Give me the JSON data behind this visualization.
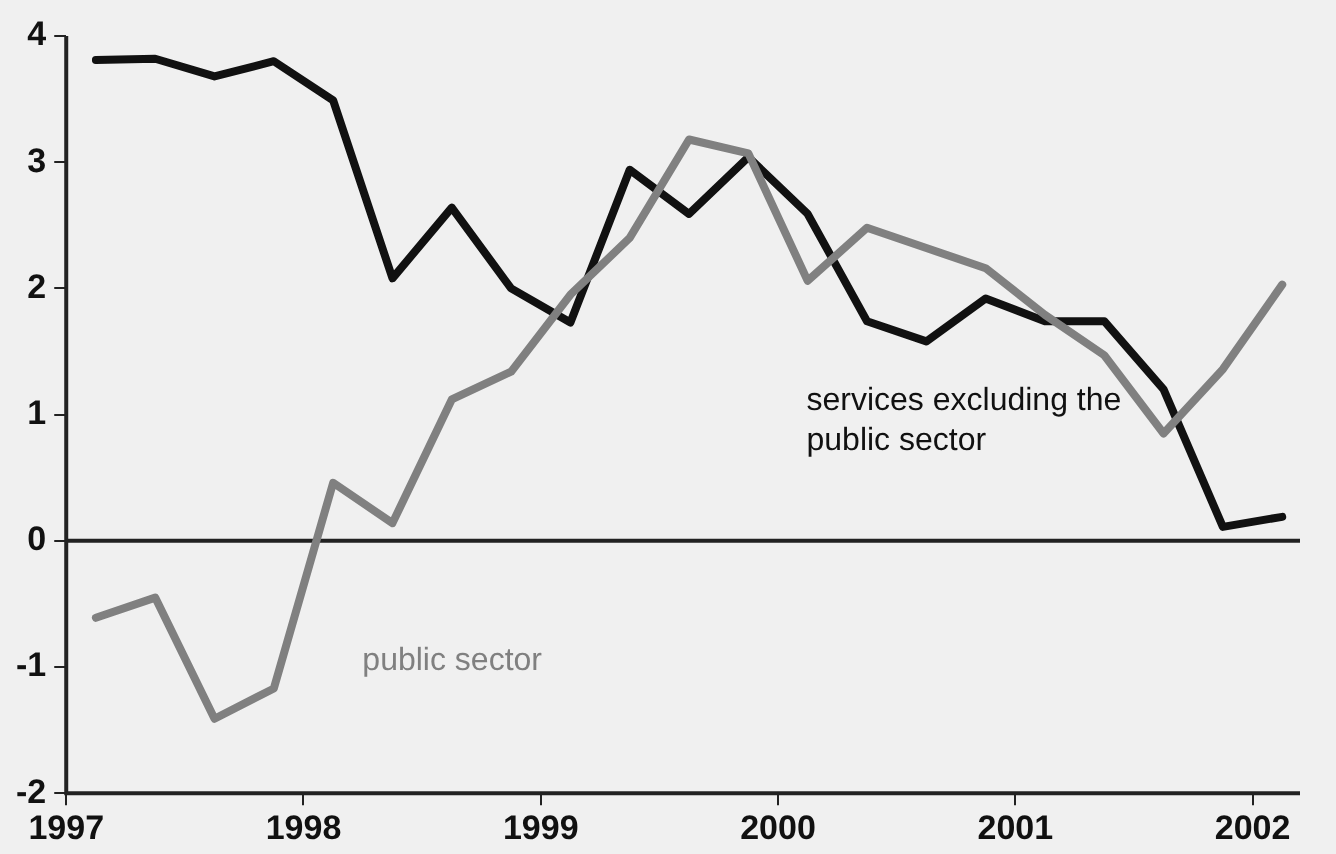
{
  "chart_data": {
    "type": "line",
    "x": [
      1997.125,
      1997.375,
      1997.625,
      1997.875,
      1998.125,
      1998.375,
      1998.625,
      1998.875,
      1999.125,
      1999.375,
      1999.625,
      1999.875,
      2000.125,
      2000.375,
      2000.625,
      2000.875,
      2001.125,
      2001.375,
      2001.625,
      2001.875,
      2002.125
    ],
    "series": [
      {
        "name": "services excluding the public sector",
        "color": "#111111",
        "values": [
          3.81,
          3.82,
          3.68,
          3.8,
          3.49,
          2.08,
          2.64,
          2.0,
          1.73,
          2.94,
          2.59,
          3.04,
          2.59,
          1.74,
          1.58,
          1.92,
          1.74,
          1.74,
          1.2,
          0.11,
          0.19
        ]
      },
      {
        "name": "public sector",
        "color": "#808080",
        "values": [
          -0.61,
          -0.45,
          -1.41,
          -1.17,
          0.46,
          0.14,
          1.12,
          1.34,
          1.95,
          2.4,
          3.18,
          3.07,
          2.06,
          2.48,
          2.32,
          2.16,
          1.79,
          1.47,
          0.85,
          1.36,
          2.03
        ]
      }
    ],
    "xlim": [
      1997,
      2002.2
    ],
    "xticks": [
      1997,
      1998,
      1999,
      2000,
      2001,
      2002
    ],
    "ylim": [
      -2,
      4
    ],
    "yticks": [
      -2,
      -1,
      0,
      1,
      2,
      3,
      4
    ],
    "ref_lines": [
      {
        "axis": "y",
        "value": 0
      }
    ],
    "grid": false,
    "legend": false,
    "marker": "none",
    "line_style": "solid"
  }
}
